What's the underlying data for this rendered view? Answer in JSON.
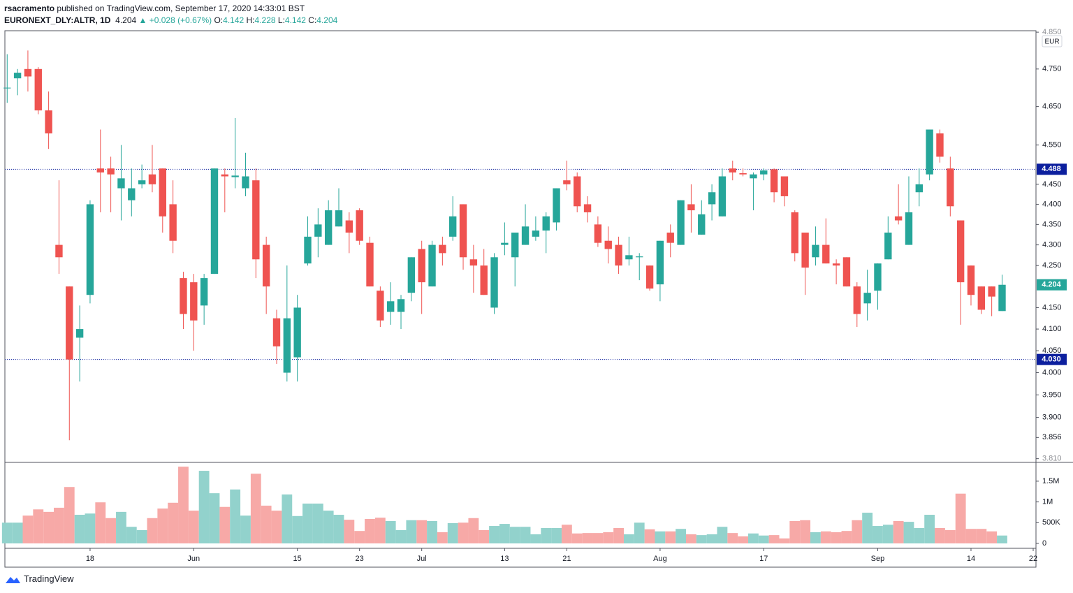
{
  "header": {
    "author": "rsacramento",
    "published": "published on TradingView.com, September 17, 2020 14:33:01 BST",
    "symbol": "EURONEXT_DLY:ALTR, 1D",
    "last": 4.204,
    "change": "▲ +0.028 (+0.67%)",
    "ohlc": [
      {
        "label": "O:",
        "value": 4.142
      },
      {
        "label": "H:",
        "value": 4.228
      },
      {
        "label": "L:",
        "value": 4.142
      },
      {
        "label": "C:",
        "value": 4.204
      }
    ]
  },
  "footer": {
    "brand": "TradingView"
  },
  "chart_data": {
    "type": "candlestick",
    "currency": "EUR",
    "log_scale": true,
    "up_color": "#26a69a",
    "down_color": "#ef5350",
    "volume_up_color": "#92d2cc",
    "volume_down_color": "#f7a9a7",
    "ylim": [
      3.802,
      4.854
    ],
    "yticks": [
      {
        "value": 4.85,
        "label": "4.850"
      },
      {
        "value": 4.75,
        "label": "4.750"
      },
      {
        "value": 4.65,
        "label": "4.650"
      },
      {
        "value": 4.55,
        "label": "4.550"
      },
      {
        "value": 4.45,
        "label": "4.450"
      },
      {
        "value": 4.4,
        "label": "4.400"
      },
      {
        "value": 4.35,
        "label": "4.350"
      },
      {
        "value": 4.3,
        "label": "4.300"
      },
      {
        "value": 4.25,
        "label": "4.250"
      },
      {
        "value": 4.15,
        "label": "4.150"
      },
      {
        "value": 4.1,
        "label": "4.100"
      },
      {
        "value": 4.05,
        "label": "4.050"
      },
      {
        "value": 4.0,
        "label": "4.000"
      },
      {
        "value": 3.95,
        "label": "3.950"
      },
      {
        "value": 3.9,
        "label": "3.900"
      },
      {
        "value": 3.856,
        "label": "3.856"
      },
      {
        "value": 3.81,
        "label": "3.810"
      }
    ],
    "xlim": [
      -0.22,
      99.27
    ],
    "xticks": [
      {
        "value": 8,
        "label": "18"
      },
      {
        "value": 18,
        "label": "Jun"
      },
      {
        "value": 28,
        "label": "15"
      },
      {
        "value": 34,
        "label": "23"
      },
      {
        "value": 40,
        "label": "Jul"
      },
      {
        "value": 48,
        "label": "13"
      },
      {
        "value": 54,
        "label": "21"
      },
      {
        "value": 63,
        "label": "Aug"
      },
      {
        "value": 73,
        "label": "17"
      },
      {
        "value": 84,
        "label": "Sep"
      },
      {
        "value": 93,
        "label": "14"
      },
      {
        "value": 99,
        "label": "22"
      }
    ],
    "price_lines": [
      {
        "value": 4.488,
        "label": "4.488",
        "color": "#0c1f9e"
      },
      {
        "value": 4.03,
        "label": "4.030",
        "color": "#0c1f9e"
      }
    ],
    "open": [
      4.7,
      4.725,
      4.75,
      4.75,
      4.64,
      4.3,
      4.2,
      4.08,
      4.18,
      4.49,
      4.49,
      4.44,
      4.41,
      4.45,
      4.475,
      4.49,
      4.4,
      4.22,
      4.21,
      4.155,
      4.23,
      4.475,
      4.468,
      4.44,
      4.46,
      4.3,
      4.125,
      4.0,
      4.035,
      4.255,
      4.32,
      4.3,
      4.345,
      4.36,
      4.385,
      4.305,
      4.19,
      4.14,
      4.14,
      4.185,
      4.29,
      4.2,
      4.3,
      4.32,
      4.4,
      4.265,
      4.25,
      4.15,
      4.3,
      4.27,
      4.3,
      4.32,
      4.335,
      4.355,
      4.46,
      4.47,
      4.4,
      4.35,
      4.31,
      4.3,
      4.265,
      4.27,
      4.25,
      4.205,
      4.33,
      4.3,
      4.4,
      4.325,
      4.4,
      4.37,
      4.49,
      4.478,
      4.465,
      4.475,
      4.488,
      4.47,
      4.38,
      4.33,
      4.27,
      4.3,
      4.255,
      4.27,
      4.2,
      4.16,
      4.19,
      4.265,
      4.37,
      4.3,
      4.43,
      4.475,
      4.58,
      4.49,
      4.36,
      4.25,
      4.2,
      4.2,
      4.142
    ],
    "high": [
      4.79,
      4.75,
      4.8,
      4.755,
      4.69,
      4.46,
      4.2,
      4.155,
      4.41,
      4.59,
      4.52,
      4.55,
      4.49,
      4.5,
      4.55,
      4.49,
      4.46,
      4.235,
      4.23,
      4.23,
      4.49,
      4.49,
      4.62,
      4.53,
      4.49,
      4.32,
      4.145,
      4.25,
      4.18,
      4.37,
      4.39,
      4.41,
      4.44,
      4.38,
      4.39,
      4.32,
      4.2,
      4.21,
      4.18,
      4.27,
      4.31,
      4.31,
      4.32,
      4.42,
      4.4,
      4.3,
      4.29,
      4.28,
      4.355,
      4.33,
      4.4,
      4.37,
      4.38,
      4.44,
      4.51,
      4.48,
      4.42,
      4.37,
      4.345,
      4.32,
      4.32,
      4.28,
      4.25,
      4.31,
      4.35,
      4.41,
      4.45,
      4.41,
      4.45,
      4.49,
      4.51,
      4.49,
      4.48,
      4.49,
      4.49,
      4.47,
      4.385,
      4.33,
      4.345,
      4.365,
      4.265,
      4.27,
      4.21,
      4.24,
      4.255,
      4.37,
      4.45,
      4.47,
      4.49,
      4.59,
      4.59,
      4.52,
      4.36,
      4.25,
      4.2,
      4.2,
      4.228
    ],
    "low": [
      4.66,
      4.68,
      4.69,
      4.63,
      4.54,
      4.23,
      3.85,
      3.98,
      4.16,
      4.38,
      4.38,
      4.36,
      4.37,
      4.44,
      4.43,
      4.33,
      4.28,
      4.1,
      4.05,
      4.11,
      4.23,
      4.38,
      4.44,
      4.42,
      4.22,
      4.135,
      4.02,
      3.98,
      3.98,
      4.25,
      4.27,
      4.3,
      4.345,
      4.28,
      4.3,
      4.2,
      4.105,
      4.11,
      4.1,
      4.165,
      4.135,
      4.2,
      4.25,
      4.31,
      4.24,
      4.185,
      4.18,
      4.135,
      4.275,
      4.2,
      4.3,
      4.31,
      4.28,
      4.335,
      4.435,
      4.38,
      4.355,
      4.295,
      4.255,
      4.23,
      4.25,
      4.215,
      4.19,
      4.165,
      4.27,
      4.3,
      4.33,
      4.325,
      4.36,
      4.37,
      4.46,
      4.47,
      4.385,
      4.46,
      4.405,
      4.395,
      4.26,
      4.18,
      4.25,
      4.255,
      4.205,
      4.2,
      4.105,
      4.12,
      4.145,
      4.265,
      4.35,
      4.3,
      4.395,
      4.46,
      4.505,
      4.37,
      4.11,
      4.155,
      4.135,
      4.13,
      4.142
    ],
    "close": [
      4.7,
      4.74,
      4.73,
      4.64,
      4.58,
      4.27,
      4.03,
      4.1,
      4.4,
      4.48,
      4.475,
      4.465,
      4.44,
      4.46,
      4.45,
      4.37,
      4.31,
      4.135,
      4.12,
      4.22,
      4.49,
      4.47,
      4.472,
      4.47,
      4.265,
      4.2,
      4.06,
      4.125,
      4.15,
      4.32,
      4.35,
      4.385,
      4.385,
      4.33,
      4.31,
      4.2,
      4.12,
      4.165,
      4.17,
      4.27,
      4.21,
      4.3,
      4.28,
      4.37,
      4.27,
      4.25,
      4.18,
      4.27,
      4.305,
      4.33,
      4.345,
      4.335,
      4.37,
      4.44,
      4.45,
      4.395,
      4.38,
      4.305,
      4.29,
      4.25,
      4.275,
      4.272,
      4.195,
      4.31,
      4.305,
      4.41,
      4.385,
      4.375,
      4.43,
      4.47,
      4.48,
      4.475,
      4.475,
      4.485,
      4.43,
      4.42,
      4.28,
      4.245,
      4.3,
      4.255,
      4.25,
      4.2,
      4.135,
      4.185,
      4.255,
      4.33,
      4.36,
      4.38,
      4.45,
      4.59,
      4.52,
      4.395,
      4.21,
      4.18,
      4.145,
      4.176,
      4.204
    ],
    "volume": {
      "ylim": [
        -0.118,
        1.953
      ],
      "yticks": [
        0,
        {
          "value": 0.5,
          "label": "500K"
        },
        {
          "value": 1,
          "label": "1M"
        },
        {
          "value": 1.5,
          "label": "1.5M"
        }
      ],
      "values": [
        0.5,
        0.5,
        0.67,
        0.82,
        0.76,
        0.86,
        1.36,
        0.69,
        0.72,
        0.99,
        0.61,
        0.76,
        0.4,
        0.32,
        0.61,
        0.84,
        0.98,
        1.85,
        0.79,
        1.75,
        1.21,
        0.88,
        1.3,
        0.67,
        1.68,
        0.91,
        0.79,
        1.18,
        0.66,
        0.96,
        0.96,
        0.79,
        0.69,
        0.57,
        0.3,
        0.59,
        0.62,
        0.54,
        0.32,
        0.56,
        0.56,
        0.54,
        0.27,
        0.49,
        0.5,
        0.61,
        0.32,
        0.42,
        0.47,
        0.4,
        0.4,
        0.22,
        0.37,
        0.37,
        0.45,
        0.24,
        0.25,
        0.25,
        0.27,
        0.37,
        0.22,
        0.5,
        0.34,
        0.29,
        0.29,
        0.35,
        0.22,
        0.2,
        0.22,
        0.4,
        0.25,
        0.17,
        0.24,
        0.19,
        0.2,
        0.12,
        0.54,
        0.56,
        0.27,
        0.29,
        0.27,
        0.3,
        0.56,
        0.74,
        0.42,
        0.45,
        0.54,
        0.52,
        0.37,
        0.69,
        0.37,
        0.32,
        1.2,
        0.35,
        0.35,
        0.29,
        0.19
      ]
    }
  }
}
